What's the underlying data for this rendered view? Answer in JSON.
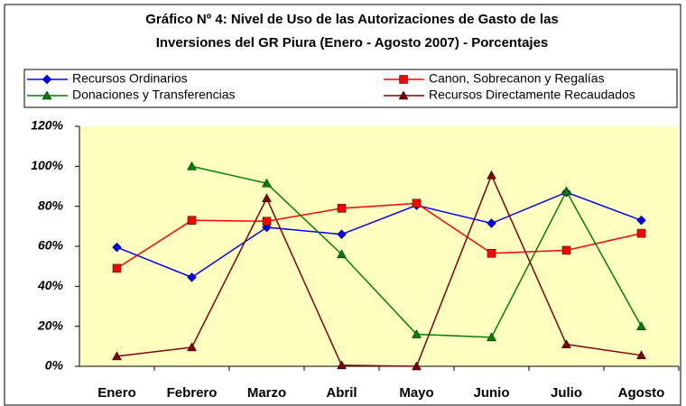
{
  "chart_data": {
    "type": "line",
    "title": [
      "Gráfico Nº 4: Nivel de Uso de las Autorizaciones de Gasto de las",
      "Inversiones del GR Piura (Enero - Agosto 2007) - Porcentajes"
    ],
    "categories": [
      "Enero",
      "Febrero",
      "Marzo",
      "Abril",
      "Mayo",
      "Junio",
      "Julio",
      "Agosto"
    ],
    "series": [
      {
        "name": "Recursos Ordinarios",
        "color": "#0000ff",
        "marker": "diamond",
        "values": [
          59.5,
          44.5,
          69.5,
          66,
          80.5,
          71.5,
          87,
          73
        ]
      },
      {
        "name": "Canon, Sobrecanon y Regalías",
        "color": "#ff0000",
        "marker": "square",
        "values": [
          49,
          73,
          72.5,
          79,
          81.5,
          56.5,
          58,
          66.5
        ]
      },
      {
        "name": "Donaciones y Transferencias",
        "color": "#008000",
        "marker": "triangle",
        "values": [
          null,
          100,
          91.5,
          56,
          16,
          14.5,
          87.5,
          20
        ]
      },
      {
        "name": "Recursos Directamente Recaudados",
        "color": "#800000",
        "marker": "triangle",
        "values": [
          5,
          9.5,
          84,
          0.5,
          0,
          95.5,
          11,
          5.5
        ]
      }
    ],
    "ylim": [
      0,
      120
    ],
    "yticks": [
      {
        "value": 0,
        "label": "0%"
      },
      {
        "value": 20,
        "label": "20%"
      },
      {
        "value": 40,
        "label": "40%"
      },
      {
        "value": 60,
        "label": "60%"
      },
      {
        "value": 80,
        "label": "80%"
      },
      {
        "value": 100,
        "label": "100%"
      },
      {
        "value": 120,
        "label": "120%"
      }
    ],
    "grid": false,
    "legend": "top"
  }
}
